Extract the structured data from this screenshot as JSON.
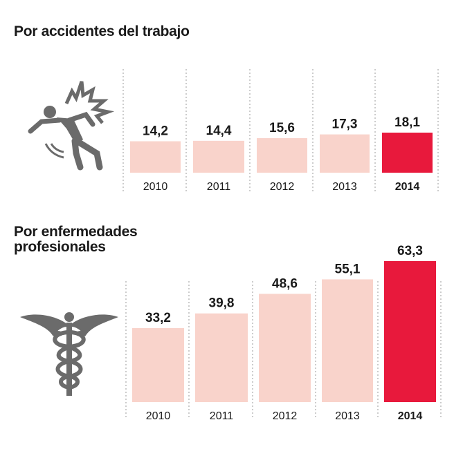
{
  "colors": {
    "bar": "#f9d3cb",
    "highlight": "#e8193c",
    "icon": "#6b6b6b"
  },
  "icons": [
    "falling-person-icon",
    "caduceus-icon"
  ],
  "chart_data": [
    {
      "type": "bar",
      "title": "Por accidentes del trabajo",
      "categories": [
        "2010",
        "2011",
        "2012",
        "2013",
        "2014"
      ],
      "values": [
        14.2,
        14.4,
        15.6,
        17.3,
        18.1
      ],
      "value_labels": [
        "14,2",
        "14,4",
        "15,6",
        "17,3",
        "18,1"
      ],
      "highlight": "2014",
      "xlabel": "",
      "ylabel": "",
      "ylim": [
        0,
        18.1
      ],
      "grid": false
    },
    {
      "type": "bar",
      "title": "Por enfermedades profesionales",
      "categories": [
        "2010",
        "2011",
        "2012",
        "2013",
        "2014"
      ],
      "values": [
        33.2,
        39.8,
        48.6,
        55.1,
        63.3
      ],
      "value_labels": [
        "33,2",
        "39,8",
        "48,6",
        "55,1",
        "63,3"
      ],
      "highlight": "2014",
      "xlabel": "",
      "ylabel": "",
      "ylim": [
        0,
        63.3
      ],
      "grid": false
    }
  ]
}
